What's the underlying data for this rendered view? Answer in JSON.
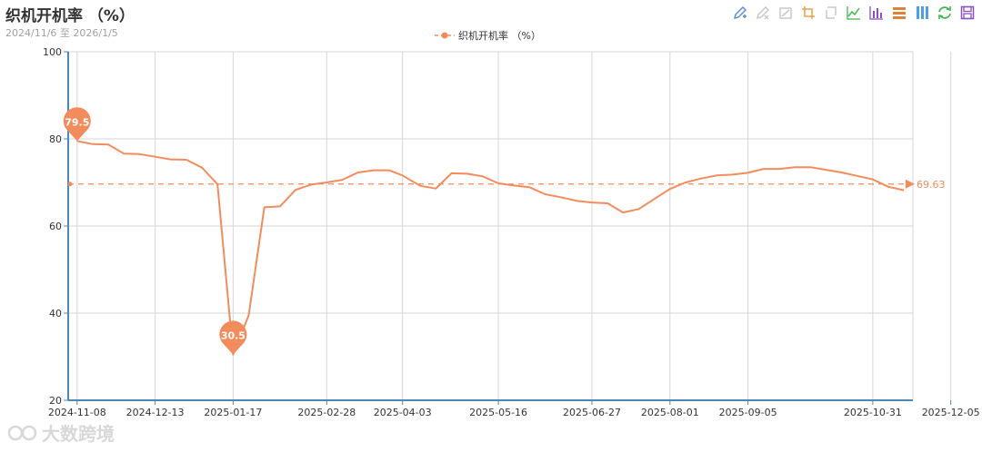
{
  "header": {
    "title": "织机开机率 （%）",
    "subtitle": "2024/11/6 至 2026/1/5"
  },
  "toolbox": {
    "icons": [
      "mark-pen-icon",
      "eraser-icon",
      "clear-marks-icon",
      "zoom-icon",
      "zoom-reset-icon",
      "line-chart-icon",
      "bar-chart-icon",
      "stack-icon",
      "tiled-icon",
      "restore-icon",
      "save-image-icon"
    ]
  },
  "legend": {
    "label": "织机开机率 （%）"
  },
  "watermark": {
    "text": "大数跨境",
    "logo": "dsk-logo-icon"
  },
  "colors": {
    "series": "#f28c5c",
    "axis": "#4a88b8",
    "grid": "#d6d6d6"
  },
  "chart_data": {
    "type": "line",
    "title": "织机开机率 （%）",
    "subtitle": "2024/11/6 至 2026/1/5",
    "ylim": [
      20,
      100
    ],
    "yticks": [
      20,
      40,
      60,
      80,
      100
    ],
    "xticks": [
      "2024-11-08",
      "2024-12-13",
      "2025-01-17",
      "2025-02-28",
      "2025-04-03",
      "2025-05-16",
      "2025-06-27",
      "2025-08-01",
      "2025-09-05",
      "2025-10-31",
      "2025-12-05"
    ],
    "grid": true,
    "legend_position": "top-center",
    "series": [
      {
        "name": "织机开机率 （%）",
        "color": "#f28c5c",
        "points": [
          [
            "2024-11-08",
            79.5
          ],
          [
            "2024-11-15",
            78.8
          ],
          [
            "2024-11-22",
            78.7
          ],
          [
            "2024-11-29",
            76.6
          ],
          [
            "2024-12-06",
            76.5
          ],
          [
            "2024-12-13",
            75.9
          ],
          [
            "2024-12-20",
            75.3
          ],
          [
            "2024-12-27",
            75.2
          ],
          [
            "2025-01-03",
            73.4
          ],
          [
            "2025-01-10",
            69.6
          ],
          [
            "2025-01-17",
            30.5
          ],
          [
            "2025-01-24",
            39.5
          ],
          [
            "2025-01-31",
            64.3
          ],
          [
            "2025-02-07",
            64.5
          ],
          [
            "2025-02-14",
            68.3
          ],
          [
            "2025-02-21",
            69.5
          ],
          [
            "2025-02-28",
            70.0
          ],
          [
            "2025-03-07",
            70.6
          ],
          [
            "2025-03-14",
            72.3
          ],
          [
            "2025-03-21",
            72.8
          ],
          [
            "2025-03-28",
            72.8
          ],
          [
            "2025-04-03",
            71.6
          ],
          [
            "2025-04-11",
            69.2
          ],
          [
            "2025-04-18",
            68.6
          ],
          [
            "2025-04-25",
            72.1
          ],
          [
            "2025-05-02",
            72.0
          ],
          [
            "2025-05-09",
            71.4
          ],
          [
            "2025-05-16",
            69.8
          ],
          [
            "2025-05-23",
            69.3
          ],
          [
            "2025-05-30",
            68.9
          ],
          [
            "2025-06-06",
            67.3
          ],
          [
            "2025-06-13",
            66.6
          ],
          [
            "2025-06-20",
            65.8
          ],
          [
            "2025-06-27",
            65.4
          ],
          [
            "2025-07-04",
            65.2
          ],
          [
            "2025-07-11",
            63.1
          ],
          [
            "2025-07-18",
            63.9
          ],
          [
            "2025-07-25",
            66.2
          ],
          [
            "2025-08-01",
            68.5
          ],
          [
            "2025-08-08",
            70.0
          ],
          [
            "2025-08-15",
            70.9
          ],
          [
            "2025-08-22",
            71.6
          ],
          [
            "2025-08-29",
            71.8
          ],
          [
            "2025-09-05",
            72.2
          ],
          [
            "2025-09-12",
            73.1
          ],
          [
            "2025-09-19",
            73.1
          ],
          [
            "2025-09-26",
            73.5
          ],
          [
            "2025-10-03",
            73.5
          ],
          [
            "2025-10-10",
            72.9
          ],
          [
            "2025-10-17",
            72.3
          ],
          [
            "2025-10-24",
            71.5
          ],
          [
            "2025-10-31",
            70.7
          ],
          [
            "2025-11-07",
            69.0
          ],
          [
            "2025-11-14",
            68.2
          ]
        ]
      }
    ],
    "markPoints": [
      {
        "label": "79.5",
        "x": "2024-11-08",
        "y": 79.5,
        "kind": "max"
      },
      {
        "label": "30.5",
        "x": "2025-01-17",
        "y": 30.5,
        "kind": "min"
      }
    ],
    "markLine": {
      "label": "69.63",
      "y": 69.63,
      "kind": "average"
    }
  }
}
